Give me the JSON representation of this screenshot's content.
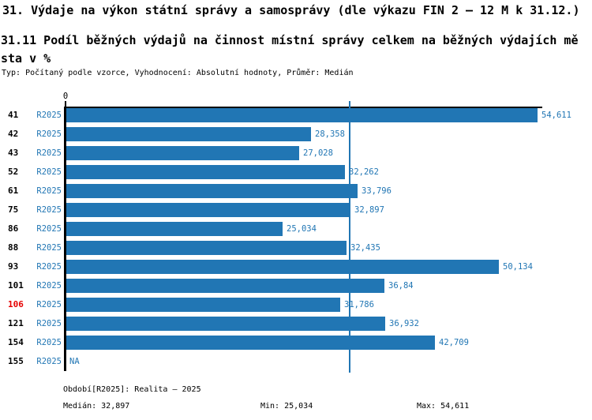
{
  "page": {
    "title": "31. Výdaje na výkon státní správy a samosprávy (dle výkazu FIN 2 – 12 M k 31.12.)",
    "subtitle_line1": "31.11 Podíl běžných výdajů na činnost místní správy celkem na běžných výdajích mě",
    "subtitle_line2": "sta v %",
    "meta_line": "Typ: Počítaný podle vzorce, Vyhodnocení: Absolutní hodnoty, Průměr: Medián"
  },
  "chart_data": {
    "type": "bar",
    "orientation": "horizontal",
    "title": "31.11 Podíl běžných výdajů na činnost místní správy celkem na běžných výdajích města v %",
    "x_axis": {
      "zero_label": "0",
      "min": 0,
      "max_visible": 55.2,
      "gridlines": false
    },
    "legend_position": "none",
    "series_label": "R2025",
    "categories": [
      "41",
      "42",
      "43",
      "52",
      "61",
      "75",
      "86",
      "88",
      "93",
      "101",
      "106",
      "121",
      "154",
      "155"
    ],
    "rows": [
      {
        "id": "41",
        "period": "R2025",
        "value": 54.611,
        "value_label": "54,611",
        "highlight": false
      },
      {
        "id": "42",
        "period": "R2025",
        "value": 28.358,
        "value_label": "28,358",
        "highlight": false
      },
      {
        "id": "43",
        "period": "R2025",
        "value": 27.028,
        "value_label": "27,028",
        "highlight": false
      },
      {
        "id": "52",
        "period": "R2025",
        "value": 32.262,
        "value_label": "32,262",
        "highlight": false
      },
      {
        "id": "61",
        "period": "R2025",
        "value": 33.796,
        "value_label": "33,796",
        "highlight": false
      },
      {
        "id": "75",
        "period": "R2025",
        "value": 32.897,
        "value_label": "32,897",
        "highlight": false
      },
      {
        "id": "86",
        "period": "R2025",
        "value": 25.034,
        "value_label": "25,034",
        "highlight": false
      },
      {
        "id": "88",
        "period": "R2025",
        "value": 32.435,
        "value_label": "32,435",
        "highlight": false
      },
      {
        "id": "93",
        "period": "R2025",
        "value": 50.134,
        "value_label": "50,134",
        "highlight": false
      },
      {
        "id": "101",
        "period": "R2025",
        "value": 36.84,
        "value_label": "36,84",
        "highlight": false
      },
      {
        "id": "106",
        "period": "R2025",
        "value": 31.786,
        "value_label": "31,786",
        "highlight": true
      },
      {
        "id": "121",
        "period": "R2025",
        "value": 36.932,
        "value_label": "36,932",
        "highlight": false
      },
      {
        "id": "154",
        "period": "R2025",
        "value": 42.709,
        "value_label": "42,709",
        "highlight": false
      },
      {
        "id": "155",
        "period": "R2025",
        "value": null,
        "value_label": "NA",
        "highlight": false
      }
    ],
    "median": 32.897,
    "min": 25.034,
    "max": 54.611,
    "colors": {
      "bar": "#2176b4",
      "text_blue": "#2176b4",
      "median_line": "#2176b4",
      "highlight_red": "#e60000",
      "axis_black": "#000000"
    }
  },
  "footer": {
    "period_line": "Období[R2025]: Realita – 2025",
    "median_label": "Medián: 32,897",
    "min_label": "Min: 25,034",
    "max_label": "Max: 54,611"
  }
}
